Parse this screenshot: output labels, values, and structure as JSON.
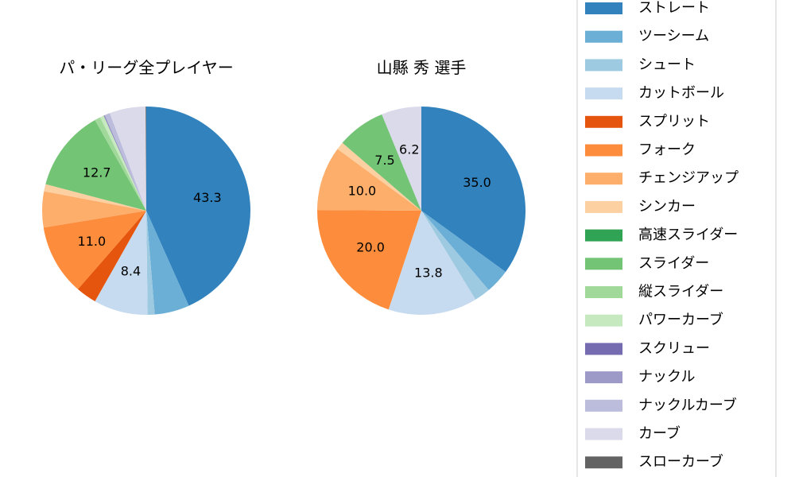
{
  "chart_data": {
    "type": "pie",
    "legend": {
      "placement": "right",
      "entries": [
        {
          "label": "ストレート",
          "color": "#3182bd"
        },
        {
          "label": "ツーシーム",
          "color": "#6baed6"
        },
        {
          "label": "シュート",
          "color": "#9ecae1"
        },
        {
          "label": "カットボール",
          "color": "#c6dbef"
        },
        {
          "label": "スプリット",
          "color": "#e6550d"
        },
        {
          "label": "フォーク",
          "color": "#fd8d3c"
        },
        {
          "label": "チェンジアップ",
          "color": "#fdae6b"
        },
        {
          "label": "シンカー",
          "color": "#fdd0a2"
        },
        {
          "label": "高速スライダー",
          "color": "#31a354"
        },
        {
          "label": "スライダー",
          "color": "#74c476"
        },
        {
          "label": "縦スライダー",
          "color": "#a1d99b"
        },
        {
          "label": "パワーカーブ",
          "color": "#c7e9c0"
        },
        {
          "label": "スクリュー",
          "color": "#756bb1"
        },
        {
          "label": "ナックル",
          "color": "#9e9ac8"
        },
        {
          "label": "ナックルカーブ",
          "color": "#bcbddc"
        },
        {
          "label": "カーブ",
          "color": "#dadaeb"
        },
        {
          "label": "スローカーブ",
          "color": "#636363"
        }
      ]
    },
    "pies": [
      {
        "title": "パ・リーグ全プレイヤー",
        "slices": [
          {
            "name": "ストレート",
            "value": 43.3,
            "label": "43.3"
          },
          {
            "name": "ツーシーム",
            "value": 5.4,
            "label": ""
          },
          {
            "name": "シュート",
            "value": 1.1,
            "label": ""
          },
          {
            "name": "カットボール",
            "value": 8.4,
            "label": "8.4"
          },
          {
            "name": "スプリット",
            "value": 3.2,
            "label": ""
          },
          {
            "name": "フォーク",
            "value": 11.0,
            "label": "11.0"
          },
          {
            "name": "チェンジアップ",
            "value": 5.6,
            "label": ""
          },
          {
            "name": "シンカー",
            "value": 1.1,
            "label": ""
          },
          {
            "name": "高速スライダー",
            "value": 0.0,
            "label": ""
          },
          {
            "name": "スライダー",
            "value": 12.7,
            "label": "12.7"
          },
          {
            "name": "縦スライダー",
            "value": 0.9,
            "label": ""
          },
          {
            "name": "パワーカーブ",
            "value": 0.6,
            "label": ""
          },
          {
            "name": "スクリュー",
            "value": 0.1,
            "label": ""
          },
          {
            "name": "ナックル",
            "value": 0.1,
            "label": ""
          },
          {
            "name": "ナックルカーブ",
            "value": 0.8,
            "label": ""
          },
          {
            "name": "カーブ",
            "value": 5.6,
            "label": ""
          },
          {
            "name": "スローカーブ",
            "value": 0.1,
            "label": ""
          }
        ]
      },
      {
        "title": "山縣 秀  選手",
        "slices": [
          {
            "name": "ストレート",
            "value": 35.0,
            "label": "35.0"
          },
          {
            "name": "ツーシーム",
            "value": 3.8,
            "label": ""
          },
          {
            "name": "シュート",
            "value": 2.5,
            "label": ""
          },
          {
            "name": "カットボール",
            "value": 13.8,
            "label": "13.8"
          },
          {
            "name": "フォーク",
            "value": 20.0,
            "label": "20.0"
          },
          {
            "name": "チェンジアップ",
            "value": 10.0,
            "label": "10.0"
          },
          {
            "name": "シンカー",
            "value": 1.2,
            "label": ""
          },
          {
            "name": "スライダー",
            "value": 7.5,
            "label": "7.5"
          },
          {
            "name": "カーブ",
            "value": 6.2,
            "label": "6.2"
          }
        ]
      }
    ]
  }
}
